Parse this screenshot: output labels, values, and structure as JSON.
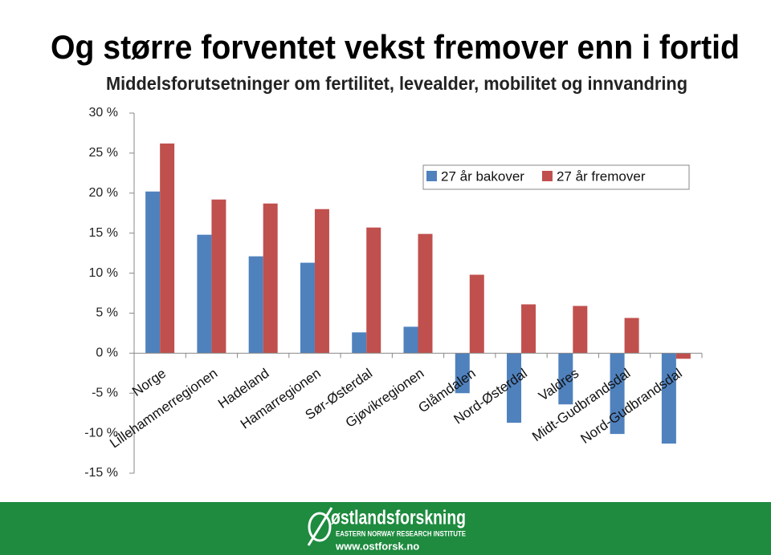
{
  "chart_data": {
    "type": "bar",
    "title": "Og større forventet vekst fremover enn i fortid",
    "subtitle": "Middelsforutsetninger om fertilitet, levealder, mobilitet og innvandring",
    "categories": [
      "Norge",
      "Lillehammerregionen",
      "Hadeland",
      "Hamarregionen",
      "Sør-Østerdal",
      "Gjøvikregionen",
      "Glåmdalen",
      "Nord-Østerdal",
      "Valdres",
      "Midt-Gudbrandsdal",
      "Nord-Gudbrandsdal"
    ],
    "series": [
      {
        "name": "27 år bakover",
        "color": "#4f81bd",
        "values": [
          20.2,
          14.8,
          12.1,
          11.3,
          2.6,
          3.3,
          -5.0,
          -8.7,
          -6.4,
          -10.1,
          -11.3
        ]
      },
      {
        "name": "27 år fremover",
        "color": "#c0504d",
        "values": [
          26.2,
          19.2,
          18.7,
          18.0,
          15.7,
          14.9,
          9.8,
          6.1,
          5.9,
          4.4,
          -0.7
        ]
      }
    ],
    "ylim": [
      -15,
      30
    ],
    "yticks": [
      {
        "value": -15,
        "label": "-15 %"
      },
      {
        "value": -10,
        "label": "-10 %"
      },
      {
        "value": -5,
        "label": "-5 %"
      },
      {
        "value": 0,
        "label": "0 %"
      },
      {
        "value": 5,
        "label": "5 %"
      },
      {
        "value": 10,
        "label": "10 %"
      },
      {
        "value": 15,
        "label": "15 %"
      },
      {
        "value": 20,
        "label": "20 %"
      },
      {
        "value": 25,
        "label": "25 %"
      },
      {
        "value": 30,
        "label": "30 %"
      }
    ],
    "grid": false,
    "legend": "top-right"
  },
  "footer": {
    "brand": "østlandsforskning",
    "institute": "EASTERN NORWAY RESEARCH INSTITUTE",
    "url": "www.ostforsk.no"
  }
}
